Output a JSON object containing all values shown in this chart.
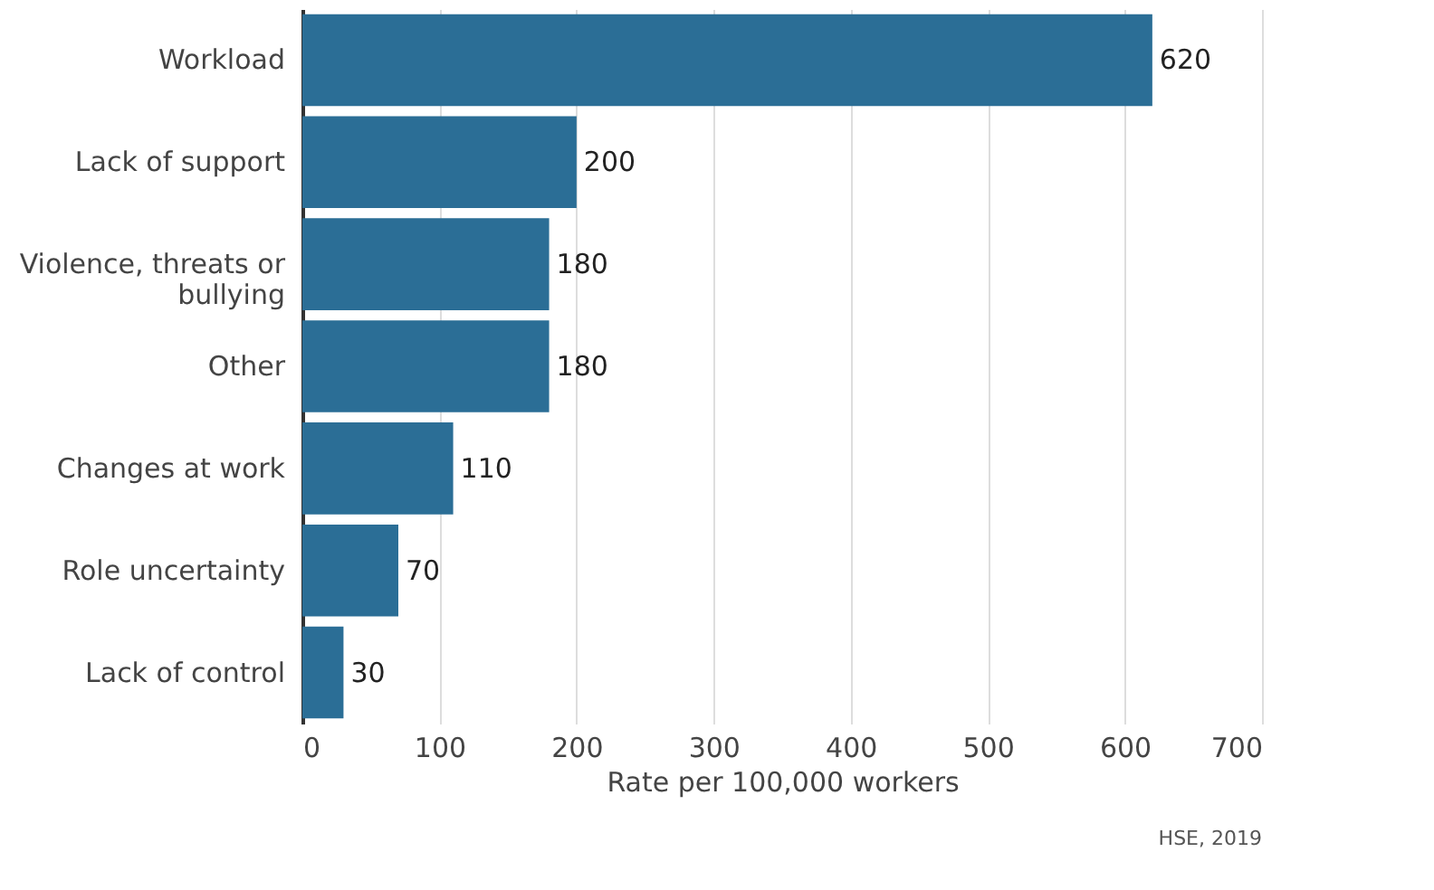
{
  "chart_data": {
    "type": "bar",
    "orientation": "horizontal",
    "xlabel": "Rate per 100,000 workers",
    "categories": [
      "Workload",
      "Lack of support",
      "Violence, threats or bullying",
      "Other",
      "Changes at work",
      "Role uncertainty",
      "Lack of control"
    ],
    "values": [
      620,
      200,
      180,
      180,
      110,
      70,
      30
    ],
    "color": "#2b6e96",
    "xlim": [
      0,
      700
    ],
    "xticks": [
      0,
      100,
      200,
      300,
      400,
      500,
      600,
      700
    ],
    "grid": "x",
    "data_labels": true,
    "annotations": [
      "HSE, 2019"
    ]
  }
}
